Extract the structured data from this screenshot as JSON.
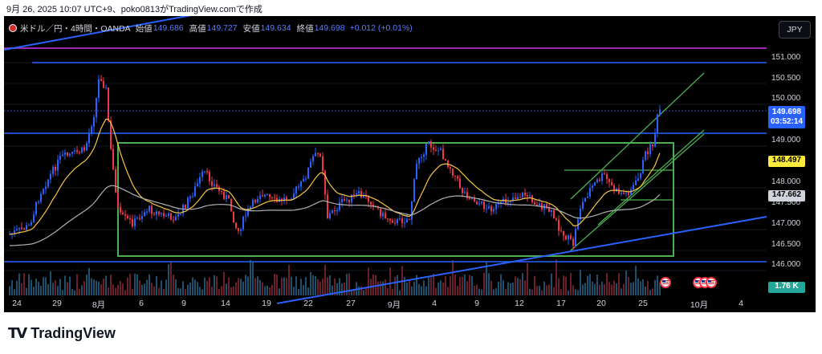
{
  "caption": "9月 26, 2025 10:07 UTC+9、poko0813がTradingView.comで作成",
  "header": {
    "symbol": "米ドル／円・4時間・OANDA",
    "open_label": "始値",
    "open": "149.686",
    "high_label": "高値",
    "high": "149.727",
    "low_label": "安値",
    "low": "149.634",
    "close_label": "終値",
    "close": "149.698",
    "change": "+0.012 (+0.01%)"
  },
  "currency_button": "JPY",
  "y_axis": {
    "ticks": [
      "151.000",
      "150.500",
      "150.000",
      "149.000",
      "148.000",
      "147.500",
      "147.000",
      "146.500",
      "146.000"
    ]
  },
  "price_labels": {
    "current_price": "149.698",
    "countdown": "03:52:14",
    "level_yellow": "148.497",
    "level_grey": "147.662",
    "volume": "1.76 K"
  },
  "x_axis": {
    "ticks": [
      "24",
      "29",
      "8月",
      "6",
      "9",
      "14",
      "19",
      "22",
      "27",
      "9月",
      "4",
      "9",
      "12",
      "17",
      "20",
      "25",
      "10月",
      "4"
    ]
  },
  "brand": {
    "logo": "TV",
    "name": "TradingView"
  },
  "colors": {
    "background": "#000000",
    "up_candle": "#2962ff",
    "down_candle": "#f23645",
    "range_box": "#4caf50",
    "horizontal_lines": "#2962ff",
    "top_line": "#9c27b0",
    "ma_fast": "#f5c542",
    "ma_slow": "#b0b0b0"
  }
}
